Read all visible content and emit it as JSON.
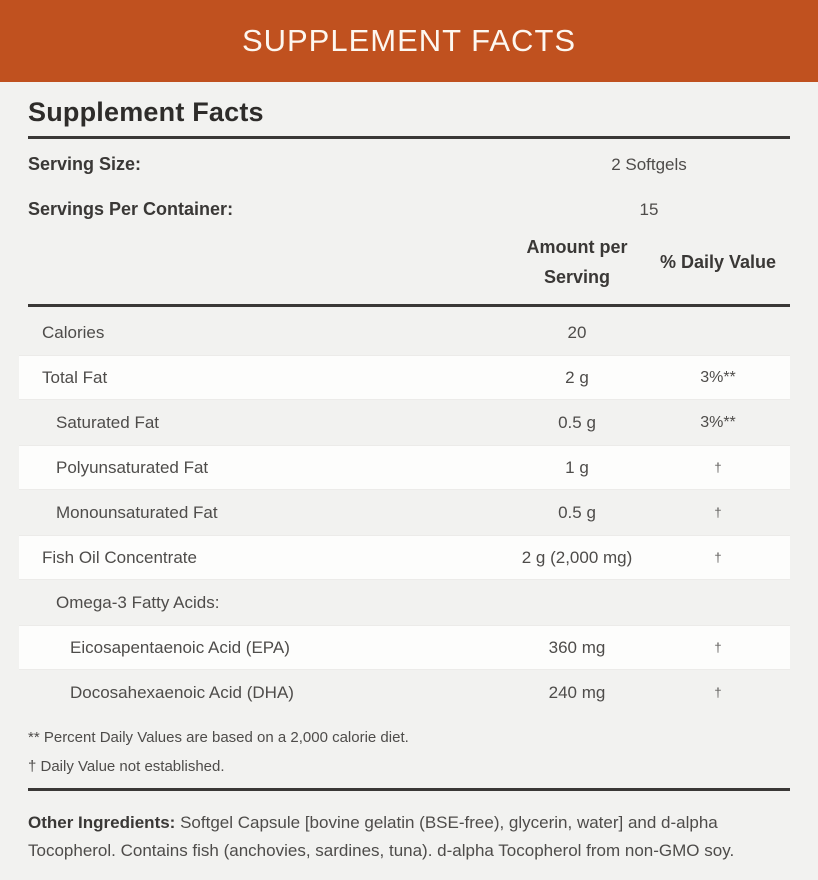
{
  "banner": {
    "title": "SUPPLEMENT FACTS"
  },
  "panel": {
    "title": "Supplement Facts",
    "serving_info": [
      {
        "label": "Serving Size:",
        "value": "2 Softgels"
      },
      {
        "label": "Servings Per Container:",
        "value": "15"
      }
    ],
    "columns": {
      "amount": "Amount per Serving",
      "daily_value": "% Daily Value"
    },
    "rows": [
      {
        "name": "Calories",
        "amount": "20",
        "dv": ""
      },
      {
        "name": "Total Fat",
        "amount": "2 g",
        "dv": "3%**"
      },
      {
        "name": "Saturated Fat",
        "amount": "0.5 g",
        "dv": "3%**"
      },
      {
        "name": "Polyunsaturated Fat",
        "amount": "1 g",
        "dv": "†"
      },
      {
        "name": "Monounsaturated Fat",
        "amount": "0.5 g",
        "dv": "†"
      },
      {
        "name": "Fish Oil Concentrate",
        "amount": "2 g (2,000 mg)",
        "dv": "†"
      },
      {
        "name": "Omega-3 Fatty Acids:",
        "amount": "",
        "dv": ""
      },
      {
        "name": "Eicosapentaenoic Acid (EPA)",
        "amount": "360 mg",
        "dv": "†"
      },
      {
        "name": "Docosahexaenoic Acid (DHA)",
        "amount": "240 mg",
        "dv": "†"
      }
    ],
    "footnotes": [
      "** Percent Daily Values are based on a 2,000 calorie diet.",
      "† Daily Value not established."
    ],
    "other_ingredients": {
      "label": "Other Ingredients:",
      "text": " Softgel Capsule [bovine gelatin (BSE-free), glycerin, water] and d-alpha Tocopherol. Contains fish (anchovies, sardines, tuna). d-alpha Tocopherol from non-GMO soy."
    }
  },
  "colors": {
    "banner_bg": "#c0511f",
    "page_bg": "#f2f2f0",
    "row_highlight": "#fdfdfc",
    "rule": "#3a3836",
    "heading_text": "#2e2c2a",
    "body_text": "#4e4c4a"
  }
}
